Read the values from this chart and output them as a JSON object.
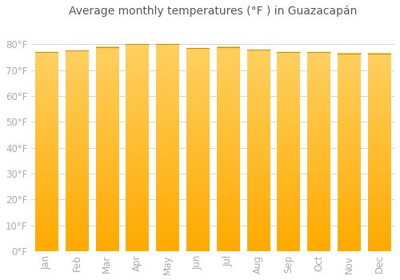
{
  "months": [
    "Jan",
    "Feb",
    "Mar",
    "Apr",
    "May",
    "Jun",
    "Jul",
    "Aug",
    "Sep",
    "Oct",
    "Nov",
    "Dec"
  ],
  "values": [
    77.0,
    77.5,
    79.0,
    80.0,
    80.0,
    78.5,
    79.0,
    78.0,
    77.0,
    77.0,
    76.5,
    76.5
  ],
  "bar_color": "#FFC125",
  "bar_gradient_bottom": "#FFAA00",
  "bar_gradient_top": "#FFD060",
  "bar_edge_color": "#C8920A",
  "title": "Average monthly temperatures (°F ) in Guazacapán",
  "ylim": [
    0,
    88
  ],
  "yticks": [
    0,
    10,
    20,
    30,
    40,
    50,
    60,
    70,
    80
  ],
  "ytick_labels": [
    "0°F",
    "10°F",
    "20°F",
    "30°F",
    "40°F",
    "50°F",
    "60°F",
    "70°F",
    "80°F"
  ],
  "background_color": "#ffffff",
  "grid_color": "#cccccc",
  "title_fontsize": 10,
  "tick_fontsize": 8.5,
  "bar_width": 0.75,
  "tick_color": "#aaaaaa"
}
